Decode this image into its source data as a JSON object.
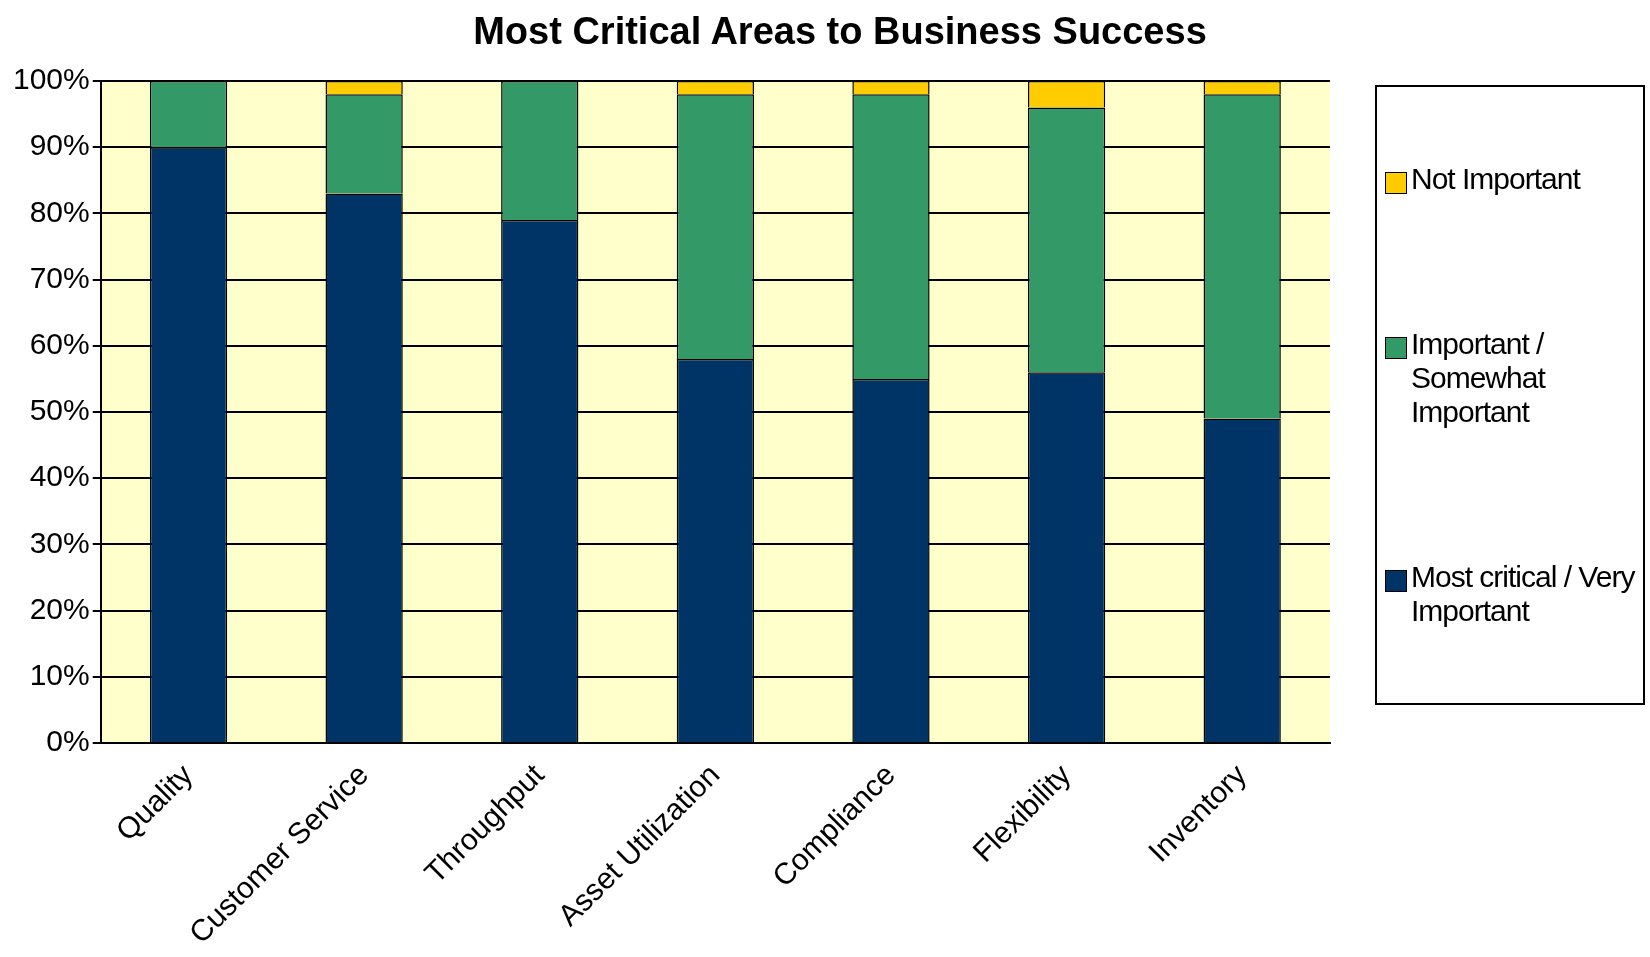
{
  "chart_data": {
    "type": "bar",
    "title": "Most Critical Areas to Business Success",
    "categories": [
      "Quality",
      "Customer Service",
      "Throughput",
      "Asset Utilization",
      "Compliance",
      "Flexibility",
      "Inventory"
    ],
    "stacked": true,
    "series": [
      {
        "name": "Most critical / Very Important",
        "color": "#003366",
        "values": [
          90,
          83,
          79,
          58,
          55,
          56,
          49
        ]
      },
      {
        "name": "Important / Somewhat Important",
        "color": "#339966",
        "values": [
          10,
          15,
          21,
          40,
          43,
          40,
          49
        ]
      },
      {
        "name": "Not Important",
        "color": "#ffcc00",
        "values": [
          0,
          2,
          0,
          2,
          2,
          4,
          2
        ]
      }
    ],
    "ylim": [
      0,
      100
    ],
    "yticks": [
      {
        "value": 0,
        "label": "0%"
      },
      {
        "value": 10,
        "label": "10%"
      },
      {
        "value": 20,
        "label": "20%"
      },
      {
        "value": 30,
        "label": "30%"
      },
      {
        "value": 40,
        "label": "40%"
      },
      {
        "value": 50,
        "label": "50%"
      },
      {
        "value": 60,
        "label": "60%"
      },
      {
        "value": 70,
        "label": "70%"
      },
      {
        "value": 80,
        "label": "80%"
      },
      {
        "value": 90,
        "label": "90%"
      },
      {
        "value": 100,
        "label": "100%"
      }
    ],
    "grid": "y",
    "legend": "right"
  }
}
